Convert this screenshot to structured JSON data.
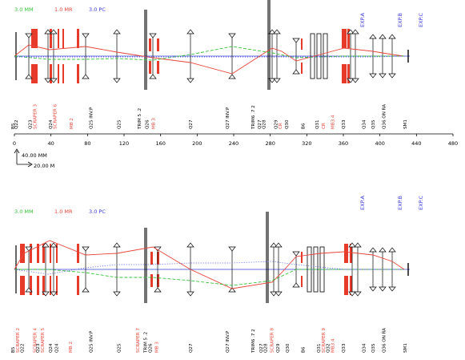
{
  "units": {
    "mm": "3.0 MM",
    "mr": "1.0 MR",
    "pc": "3.0 PC"
  },
  "colors": {
    "mm": "#35c23a",
    "mr": "#e8463a",
    "pc": "#3a3ae0",
    "magnet": "#e63a2a",
    "traj_red": "#e8463a",
    "traj_green": "#35c23a",
    "traj_blue": "#5a5ae8",
    "axis": "#3040d0"
  },
  "scale": {
    "vertical": "40.00 MM",
    "horizontal": "20.00 M"
  },
  "axis": {
    "ticks": [
      0,
      40,
      80,
      120,
      160,
      200,
      240,
      280,
      320,
      360,
      400,
      440,
      480
    ]
  },
  "experiments": [
    "EXP.A",
    "EXP.B",
    "EXP.C"
  ],
  "top": {
    "element_labels": [
      {
        "text": "B5",
        "s": 0,
        "color": "black"
      },
      {
        "text": "Q22",
        "s": 4,
        "color": "black"
      },
      {
        "text": "Q23",
        "s": 22,
        "color": "black"
      },
      {
        "text": "SCRAPER 3",
        "s": 28,
        "color": "red"
      },
      {
        "text": "Q24",
        "s": 48,
        "color": "black"
      },
      {
        "text": "SCRAPER 6",
        "s": 54,
        "color": "red"
      },
      {
        "text": "MB 2",
        "s": 75,
        "color": "red"
      },
      {
        "text": "Q25 INV.P",
        "s": 100,
        "color": "black"
      },
      {
        "text": "Q25",
        "s": 136,
        "color": "black"
      },
      {
        "text": "TRIM 5 .2",
        "s": 162,
        "color": "black"
      },
      {
        "text": "Q26",
        "s": 172,
        "color": "black"
      },
      {
        "text": "MB 3",
        "s": 180,
        "color": "red"
      },
      {
        "text": "Q27",
        "s": 228,
        "color": "black"
      },
      {
        "text": "Q27 INV.P",
        "s": 275,
        "color": "black"
      },
      {
        "text": "TRIM6 .7 2",
        "s": 308,
        "color": "black"
      },
      {
        "text": "Q27",
        "s": 316,
        "color": "black"
      },
      {
        "text": "Q28",
        "s": 322,
        "color": "black"
      },
      {
        "text": "Q29",
        "s": 337,
        "color": "black"
      },
      {
        "text": "CR",
        "s": 343,
        "color": "red"
      },
      {
        "text": "Q30",
        "s": 351,
        "color": "black"
      },
      {
        "text": "B6",
        "s": 372,
        "color": "black"
      },
      {
        "text": "Q31",
        "s": 390,
        "color": "black"
      },
      {
        "text": "CR",
        "s": 398,
        "color": "red"
      },
      {
        "text": "MB3.4",
        "s": 410,
        "color": "red"
      },
      {
        "text": "Q33",
        "s": 424,
        "color": "black"
      },
      {
        "text": "Q34",
        "s": 450,
        "color": "black"
      },
      {
        "text": "Q35",
        "s": 462,
        "color": "black"
      },
      {
        "text": "Q36 ON RA",
        "s": 476,
        "color": "black"
      },
      {
        "text": "SM1",
        "s": 503,
        "color": "black"
      }
    ]
  },
  "bottom": {
    "element_labels": [
      {
        "text": "B5",
        "s": 0,
        "color": "black"
      },
      {
        "text": "SCRAPER 2",
        "s": 6,
        "color": "red"
      },
      {
        "text": "Q22",
        "s": 12,
        "color": "black"
      },
      {
        "text": "SCRAPER 4",
        "s": 28,
        "color": "red"
      },
      {
        "text": "Q23",
        "s": 32,
        "color": "black"
      },
      {
        "text": "SCRAPER 5",
        "s": 38,
        "color": "red"
      },
      {
        "text": "Q24",
        "s": 48,
        "color": "black"
      },
      {
        "text": "Q24",
        "s": 56,
        "color": "black"
      },
      {
        "text": "MB 2",
        "s": 74,
        "color": "red"
      },
      {
        "text": "Q25 INV.P",
        "s": 100,
        "color": "black"
      },
      {
        "text": "Q25",
        "s": 136,
        "color": "black"
      },
      {
        "text": "SCRAPER 7",
        "s": 160,
        "color": "red"
      },
      {
        "text": "TRIM 5 .2",
        "s": 170,
        "color": "black"
      },
      {
        "text": "Q26",
        "s": 176,
        "color": "black"
      },
      {
        "text": "MB 3",
        "s": 184,
        "color": "red"
      },
      {
        "text": "Q27",
        "s": 228,
        "color": "black"
      },
      {
        "text": "Q27 INV.P",
        "s": 275,
        "color": "black"
      },
      {
        "text": "TRIM6 .7 2",
        "s": 308,
        "color": "black"
      },
      {
        "text": "Q27",
        "s": 318,
        "color": "black"
      },
      {
        "text": "Q28",
        "s": 324,
        "color": "black"
      },
      {
        "text": "SCRAPER 8",
        "s": 332,
        "color": "red"
      },
      {
        "text": "Q29",
        "s": 340,
        "color": "black"
      },
      {
        "text": "Q30",
        "s": 352,
        "color": "black"
      },
      {
        "text": "B6",
        "s": 372,
        "color": "black"
      },
      {
        "text": "Q31",
        "s": 392,
        "color": "black"
      },
      {
        "text": "SCRAPER 9",
        "s": 398,
        "color": "red"
      },
      {
        "text": "Q32",
        "s": 404,
        "color": "black"
      },
      {
        "text": "MB3.4",
        "s": 410,
        "color": "red"
      },
      {
        "text": "Q33",
        "s": 424,
        "color": "black"
      },
      {
        "text": "Q34",
        "s": 450,
        "color": "black"
      },
      {
        "text": "Q35",
        "s": 462,
        "color": "black"
      },
      {
        "text": "Q36 ON RA",
        "s": 476,
        "color": "black"
      },
      {
        "text": "SM1",
        "s": 503,
        "color": "black"
      }
    ]
  }
}
